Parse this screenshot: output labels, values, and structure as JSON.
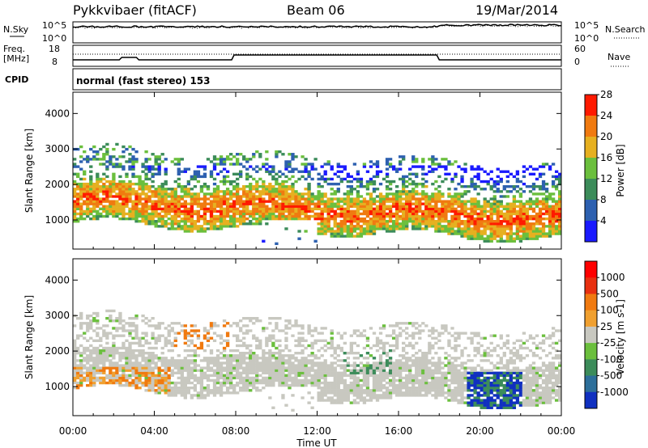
{
  "header": {
    "station": "Pykkvibaer (fitACF)",
    "beam": "Beam 06",
    "date": "19/Mar/2014"
  },
  "strip_labels": {
    "nsky": "N.Sky",
    "nsky_ticks": [
      "10^5",
      "10^0"
    ],
    "nsearch": "N.Search",
    "nsearch_ticks": [
      "10^5",
      "10^0"
    ],
    "freq": "Freq.",
    "freq_unit": "[MHz]",
    "freq_ticks": [
      "18",
      "8"
    ],
    "nave": "Nave",
    "nave_ticks": [
      "60",
      "0"
    ],
    "cpid": "CPID",
    "cpid_text": "normal (fast stereo) 153"
  },
  "chart_data": [
    {
      "type": "heatmap",
      "title": "",
      "xlabel": "",
      "ylabel": "Slant Range [km]",
      "x_ticks": [
        "00:00",
        "04:00",
        "08:00",
        "12:00",
        "16:00",
        "20:00",
        "00:00"
      ],
      "y_ticks": [
        "1000",
        "2000",
        "3000",
        "4000"
      ],
      "ylim": [
        180,
        4600
      ],
      "colorbar": {
        "label": "Power [dB]",
        "ticks": [
          "4",
          "8",
          "12",
          "16",
          "20",
          "24",
          "28"
        ],
        "colors": [
          "#1a1aff",
          "#2d60b0",
          "#3c8c5a",
          "#6bbf3d",
          "#e6b020",
          "#f07a10",
          "#ff1a00"
        ]
      }
    },
    {
      "type": "heatmap",
      "title": "",
      "xlabel": "Time UT",
      "ylabel": "Slant Range [km]",
      "x_ticks": [
        "00:00",
        "04:00",
        "08:00",
        "12:00",
        "16:00",
        "20:00",
        "00:00"
      ],
      "y_ticks": [
        "1000",
        "2000",
        "3000",
        "4000"
      ],
      "ylim": [
        180,
        4600
      ],
      "colorbar": {
        "label": "Velocity [m s-1]",
        "ticks": [
          "1000",
          "500",
          "100",
          "25",
          "-25",
          "-100",
          "-500",
          "-1000"
        ],
        "colors": [
          "#1030c0",
          "#2d6f9a",
          "#3c8c5a",
          "#6bbf3d",
          "#c8c8c0",
          "#f0a030",
          "#f07a10",
          "#e83010",
          "#ff0000"
        ]
      }
    }
  ]
}
